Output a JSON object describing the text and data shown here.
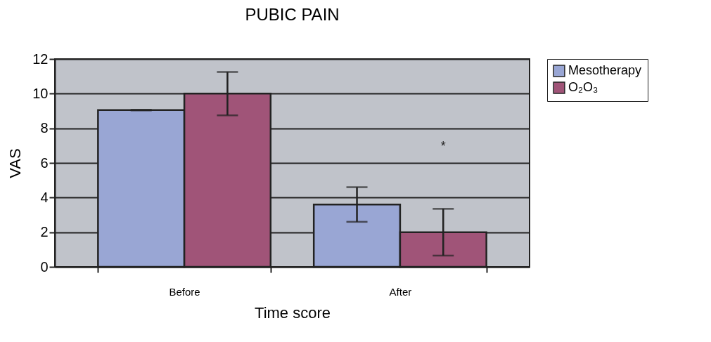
{
  "chart_data": {
    "type": "bar",
    "title": "PUBIC PAIN",
    "xlabel": "Time score",
    "ylabel": "VAS",
    "categories": [
      "Before",
      "After"
    ],
    "series": [
      {
        "name": "Mesotherapy",
        "color": "#99a6d4",
        "values": [
          9.05,
          3.6
        ],
        "errors": [
          0.02,
          1.0
        ]
      },
      {
        "name": "O₂O₃",
        "color": "#a05478",
        "values": [
          10,
          2.0
        ],
        "errors": [
          1.25,
          1.35
        ]
      }
    ],
    "ylim": [
      0,
      12
    ],
    "yticks": [
      0,
      2,
      4,
      6,
      8,
      10,
      12
    ],
    "grid": "y",
    "legend": "right",
    "annotations": [
      "*"
    ]
  }
}
